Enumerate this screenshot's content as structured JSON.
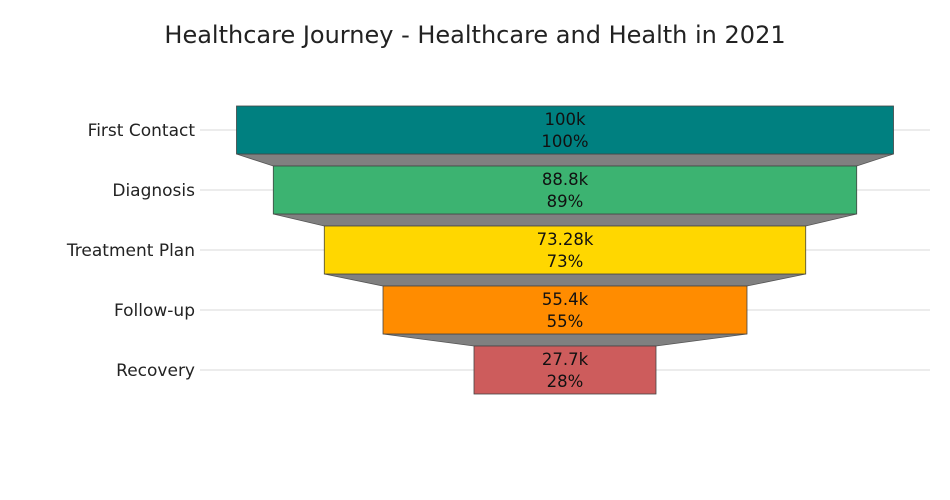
{
  "chart_data": {
    "type": "funnel",
    "title": "Healthcare Journey - Healthcare and Health in 2021",
    "stages": [
      {
        "label": "First Contact",
        "value": 100000,
        "value_text": "100k",
        "percent_text": "100%",
        "color": "#008080"
      },
      {
        "label": "Diagnosis",
        "value": 88800,
        "value_text": "88.8k",
        "percent_text": "89%",
        "color": "#3CB371"
      },
      {
        "label": "Treatment Plan",
        "value": 73280,
        "value_text": "73.28k",
        "percent_text": "73%",
        "color": "#FFD700"
      },
      {
        "label": "Follow-up",
        "value": 55400,
        "value_text": "55.4k",
        "percent_text": "55%",
        "color": "#FF8C00"
      },
      {
        "label": "Recovery",
        "value": 27700,
        "value_text": "27.7k",
        "percent_text": "28%",
        "color": "#CD5C5C"
      }
    ],
    "connector_color": "#808080",
    "grid": true
  }
}
